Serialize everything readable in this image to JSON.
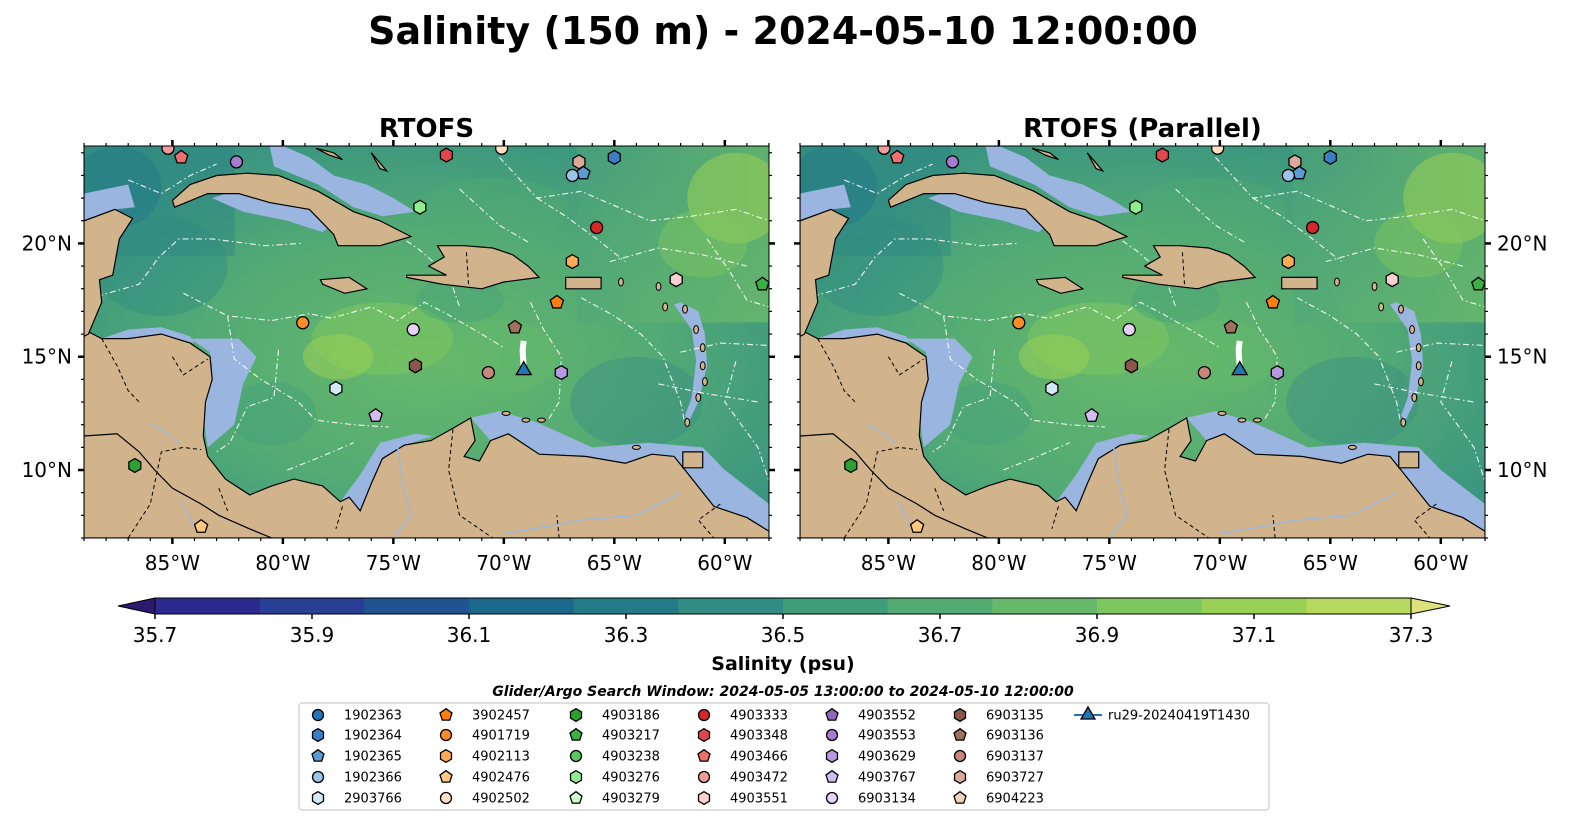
{
  "figure": {
    "suptitle": "Salinity (150 m) - 2024-05-10 12:00:00"
  },
  "map_extent": {
    "lon": [
      -89,
      -58
    ],
    "lat": [
      7,
      24.3
    ]
  },
  "axes": {
    "lon_ticks": [
      {
        "value": -85,
        "label": "85°W"
      },
      {
        "value": -80,
        "label": "80°W"
      },
      {
        "value": -75,
        "label": "75°W"
      },
      {
        "value": -70,
        "label": "70°W"
      },
      {
        "value": -65,
        "label": "65°W"
      },
      {
        "value": -60,
        "label": "60°W"
      }
    ],
    "lat_ticks": [
      {
        "value": 10,
        "label": "10°N"
      },
      {
        "value": 15,
        "label": "15°N"
      },
      {
        "value": 20,
        "label": "20°N"
      }
    ]
  },
  "colors": {
    "land": "#d2b48c",
    "shelf": "#9ab5e0",
    "ocean_mid": "#4fa57a",
    "deep_pacific": "#2b1a6e",
    "river": "#a0b8d8",
    "marker_edge": "#000000"
  },
  "colorbar": {
    "label": "Salinity (psu)",
    "min": 35.6,
    "max": 37.4,
    "extend": "both",
    "ticks": [
      "35.7",
      "35.9",
      "36.1",
      "36.3",
      "36.5",
      "36.7",
      "36.9",
      "37.1",
      "37.3"
    ],
    "colors": [
      "#2b1a6e",
      "#2d2a8f",
      "#283f95",
      "#1f5392",
      "#1c678c",
      "#257a88",
      "#318c83",
      "#409d7c",
      "#53ab74",
      "#67b86a",
      "#7ec75f",
      "#99d056",
      "#b8d960",
      "#dde27d"
    ]
  },
  "search_window": "Glider/Argo Search Window: 2024-05-05 13:00:00 to 2024-05-10 12:00:00",
  "chart_data": [
    {
      "type": "map-contour",
      "title": "RTOFS",
      "variable": "Salinity",
      "depth": "150 m",
      "units": "psu",
      "xlim": [
        -89,
        -58
      ],
      "ylim": [
        7,
        24.3
      ]
    },
    {
      "type": "map-contour",
      "title": "RTOFS (Parallel)",
      "variable": "Salinity",
      "depth": "150 m",
      "units": "psu",
      "xlim": [
        -89,
        -58
      ],
      "ylim": [
        7,
        24.3
      ]
    }
  ],
  "platforms": [
    {
      "id": "1902363",
      "marker": "circle",
      "color": "#1f77b4",
      "lon": null,
      "lat": null
    },
    {
      "id": "1902364",
      "marker": "hexagon",
      "color": "#3a7fc4",
      "lon": -65.0,
      "lat": 23.8
    },
    {
      "id": "1902365",
      "marker": "pentagon",
      "color": "#5b9bd5",
      "lon": -66.4,
      "lat": 23.1
    },
    {
      "id": "1902366",
      "marker": "circle",
      "color": "#9cc3e8",
      "lon": -66.9,
      "lat": 23.0
    },
    {
      "id": "2903766",
      "marker": "hexagon",
      "color": "#d4e8f8",
      "lon": -77.6,
      "lat": 13.6
    },
    {
      "id": "3902457",
      "marker": "pentagon",
      "color": "#ff7f0e",
      "lon": -67.6,
      "lat": 17.4
    },
    {
      "id": "4901719",
      "marker": "circle",
      "color": "#ff8c28",
      "lon": -79.1,
      "lat": 16.5
    },
    {
      "id": "4902113",
      "marker": "hexagon",
      "color": "#ffaa55",
      "lon": -66.9,
      "lat": 19.2
    },
    {
      "id": "4902476",
      "marker": "pentagon",
      "color": "#ffc880",
      "lon": -83.7,
      "lat": 7.5
    },
    {
      "id": "4902502",
      "marker": "circle",
      "color": "#ffe0c2",
      "lon": -70.1,
      "lat": 24.2
    },
    {
      "id": "4903186",
      "marker": "hexagon",
      "color": "#2ca02c",
      "lon": -86.7,
      "lat": 10.2
    },
    {
      "id": "4903217",
      "marker": "pentagon",
      "color": "#3cb043",
      "lon": -58.3,
      "lat": 18.2
    },
    {
      "id": "4903238",
      "marker": "circle",
      "color": "#5cc85c",
      "lon": null,
      "lat": null
    },
    {
      "id": "4903276",
      "marker": "hexagon",
      "color": "#90ee90",
      "lon": -73.8,
      "lat": 21.6
    },
    {
      "id": "4903279",
      "marker": "pentagon",
      "color": "#ccffcc",
      "lon": null,
      "lat": null
    },
    {
      "id": "4903333",
      "marker": "circle",
      "color": "#d62728",
      "lon": -65.8,
      "lat": 20.7
    },
    {
      "id": "4903348",
      "marker": "hexagon",
      "color": "#e0474c",
      "lon": -72.6,
      "lat": 23.9
    },
    {
      "id": "4903466",
      "marker": "pentagon",
      "color": "#f07070",
      "lon": -84.6,
      "lat": 23.8
    },
    {
      "id": "4903472",
      "marker": "circle",
      "color": "#f59a9a",
      "lon": -85.2,
      "lat": 24.2
    },
    {
      "id": "4903551",
      "marker": "hexagon",
      "color": "#fcd0d0",
      "lon": -62.2,
      "lat": 18.4
    },
    {
      "id": "4903552",
      "marker": "pentagon",
      "color": "#9467bd",
      "lon": null,
      "lat": null
    },
    {
      "id": "4903553",
      "marker": "circle",
      "color": "#a47cd0",
      "lon": -82.1,
      "lat": 23.6
    },
    {
      "id": "4903629",
      "marker": "hexagon",
      "color": "#b898e0",
      "lon": -67.4,
      "lat": 14.3
    },
    {
      "id": "4903767",
      "marker": "pentagon",
      "color": "#d3bdf0",
      "lon": -75.8,
      "lat": 12.4
    },
    {
      "id": "6903134",
      "marker": "circle",
      "color": "#e6d2f8",
      "lon": -74.1,
      "lat": 16.2
    },
    {
      "id": "6903135",
      "marker": "hexagon",
      "color": "#8c564b",
      "lon": -74.0,
      "lat": 14.6
    },
    {
      "id": "6903136",
      "marker": "pentagon",
      "color": "#a0705f",
      "lon": -69.5,
      "lat": 16.3
    },
    {
      "id": "6903137",
      "marker": "circle",
      "color": "#c4877a",
      "lon": -70.7,
      "lat": 14.3
    },
    {
      "id": "6903727",
      "marker": "hexagon",
      "color": "#dba89a",
      "lon": -66.6,
      "lat": 23.6
    },
    {
      "id": "6904223",
      "marker": "pentagon",
      "color": "#f5d2c0",
      "lon": null,
      "lat": null
    },
    {
      "id": "ru29-20240419T1430",
      "marker": "triangle",
      "color": "#1f77b4",
      "lon": -69.1,
      "lat": 14.4,
      "track": true
    }
  ]
}
